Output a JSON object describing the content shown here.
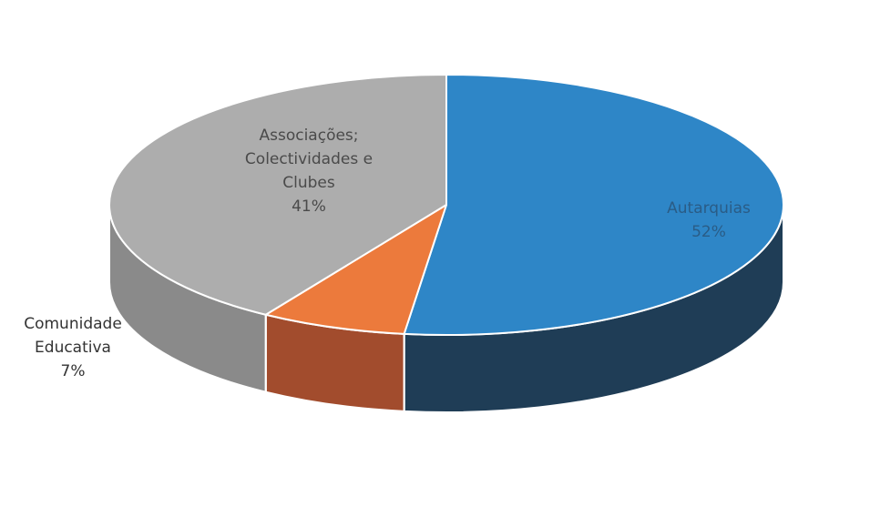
{
  "chart_data": {
    "type": "pie",
    "style": "3d",
    "title": "",
    "slices": [
      {
        "key": "autarquias",
        "lines": [
          "Autarquias"
        ],
        "label_pct": "52%",
        "value": 52,
        "color": "#2e86c7",
        "side_color": "#1f3d56",
        "label_color": "#2a5c86"
      },
      {
        "key": "comunidade-educativa",
        "lines": [
          "Comunidade",
          "Educativa"
        ],
        "label_pct": "7%",
        "value": 7,
        "color": "#ec7a3c",
        "side_color": "#a24c2d",
        "label_color": "#333333"
      },
      {
        "key": "associacoes",
        "lines": [
          "Associações;",
          "Colectividades e",
          "Clubes"
        ],
        "label_pct": "41%",
        "value": 41,
        "color": "#adadad",
        "side_color": "#8a8a8a",
        "label_color": "#4a4a4a"
      }
    ]
  }
}
